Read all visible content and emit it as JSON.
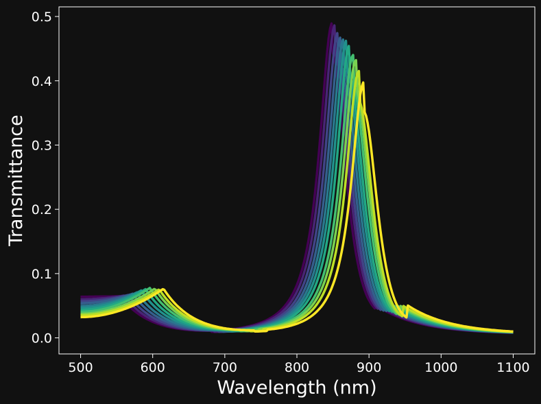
{
  "chart_data": {
    "type": "line",
    "title": "",
    "xlabel": "Wavelength (nm)",
    "ylabel": "Transmittance",
    "xlim": [
      470,
      1130
    ],
    "ylim": [
      -0.025,
      0.515
    ],
    "xticks": [
      500,
      600,
      700,
      800,
      900,
      1000,
      1100
    ],
    "xtick_labels": [
      "500",
      "600",
      "700",
      "800",
      "900",
      "1000",
      "1100"
    ],
    "yticks": [
      0.0,
      0.1,
      0.2,
      0.3,
      0.4,
      0.5
    ],
    "ytick_labels": [
      "0.0",
      "0.1",
      "0.2",
      "0.3",
      "0.4",
      "0.5"
    ],
    "grid": false,
    "legend": "none",
    "colormap": "viridis",
    "background": "#111111",
    "axes_color": "#ffffff",
    "series": [
      {
        "color": "#440154",
        "peak_x": 849,
        "peak_y": 0.49,
        "hump_x": 555,
        "hump_y": 0.062,
        "start_y": 0.062
      },
      {
        "color": "#482475",
        "peak_x": 853,
        "peak_y": 0.487,
        "hump_x": 560,
        "hump_y": 0.063,
        "start_y": 0.058
      },
      {
        "color": "#414487",
        "peak_x": 857,
        "peak_y": 0.475,
        "hump_x": 566,
        "hump_y": 0.064,
        "start_y": 0.055
      },
      {
        "color": "#355f8d",
        "peak_x": 861,
        "peak_y": 0.468,
        "hump_x": 572,
        "hump_y": 0.066,
        "start_y": 0.052
      },
      {
        "color": "#2a788e",
        "peak_x": 865,
        "peak_y": 0.465,
        "hump_x": 578,
        "hump_y": 0.068,
        "start_y": 0.048
      },
      {
        "color": "#21918c",
        "peak_x": 869,
        "peak_y": 0.463,
        "hump_x": 584,
        "hump_y": 0.071,
        "start_y": 0.045
      },
      {
        "color": "#22a884",
        "peak_x": 873,
        "peak_y": 0.455,
        "hump_x": 590,
        "hump_y": 0.073,
        "start_y": 0.042
      },
      {
        "color": "#44bf70",
        "peak_x": 878,
        "peak_y": 0.44,
        "hump_x": 596,
        "hump_y": 0.075,
        "start_y": 0.039
      },
      {
        "color": "#7ad151",
        "peak_x": 882,
        "peak_y": 0.432,
        "hump_x": 603,
        "hump_y": 0.074,
        "start_y": 0.036
      },
      {
        "color": "#bddf26",
        "peak_x": 886,
        "peak_y": 0.415,
        "hump_x": 609,
        "hump_y": 0.073,
        "start_y": 0.034
      },
      {
        "color": "#fde725",
        "peak_x": 893,
        "peak_y": 0.398,
        "hump_x": 615,
        "hump_y": 0.074,
        "start_y": 0.031
      }
    ]
  }
}
